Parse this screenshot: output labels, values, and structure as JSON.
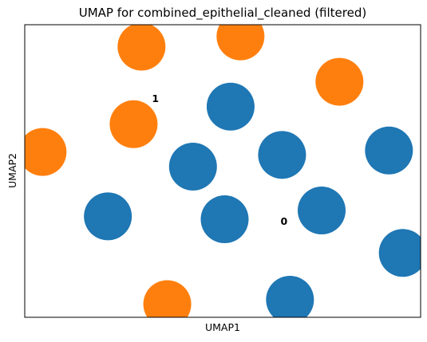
{
  "chart_data": {
    "type": "scatter",
    "title": "UMAP for combined_epithelial_cleaned (filtered)",
    "xlabel": "UMAP1",
    "ylabel": "UMAP2",
    "xlim": [
      0,
      100
    ],
    "ylim": [
      0,
      100
    ],
    "x_ticks": [],
    "y_ticks": [],
    "grid": false,
    "legend": "none (labels on data)",
    "series": [
      {
        "name": "0",
        "color": "#1f77b4",
        "points": [
          {
            "x": 52.0,
            "y": 72.0
          },
          {
            "x": 65.0,
            "y": 55.5
          },
          {
            "x": 92.0,
            "y": 57.0
          },
          {
            "x": 42.5,
            "y": 51.5
          },
          {
            "x": 21.0,
            "y": 34.5
          },
          {
            "x": 50.5,
            "y": 33.5
          },
          {
            "x": 75.0,
            "y": 36.5
          },
          {
            "x": 95.5,
            "y": 22.0
          },
          {
            "x": 67.0,
            "y": 6.0
          }
        ]
      },
      {
        "name": "1",
        "color": "#ff7f0e",
        "points": [
          {
            "x": 29.5,
            "y": 92.5
          },
          {
            "x": 54.5,
            "y": 96.0
          },
          {
            "x": 79.5,
            "y": 80.5
          },
          {
            "x": 27.5,
            "y": 66.0
          },
          {
            "x": 4.5,
            "y": 56.5
          },
          {
            "x": 36.0,
            "y": 4.5
          }
        ]
      }
    ],
    "annotations": [
      {
        "text": "1",
        "x": 33.0,
        "y": 74.5
      },
      {
        "text": "0",
        "x": 65.5,
        "y": 32.5
      }
    ]
  }
}
